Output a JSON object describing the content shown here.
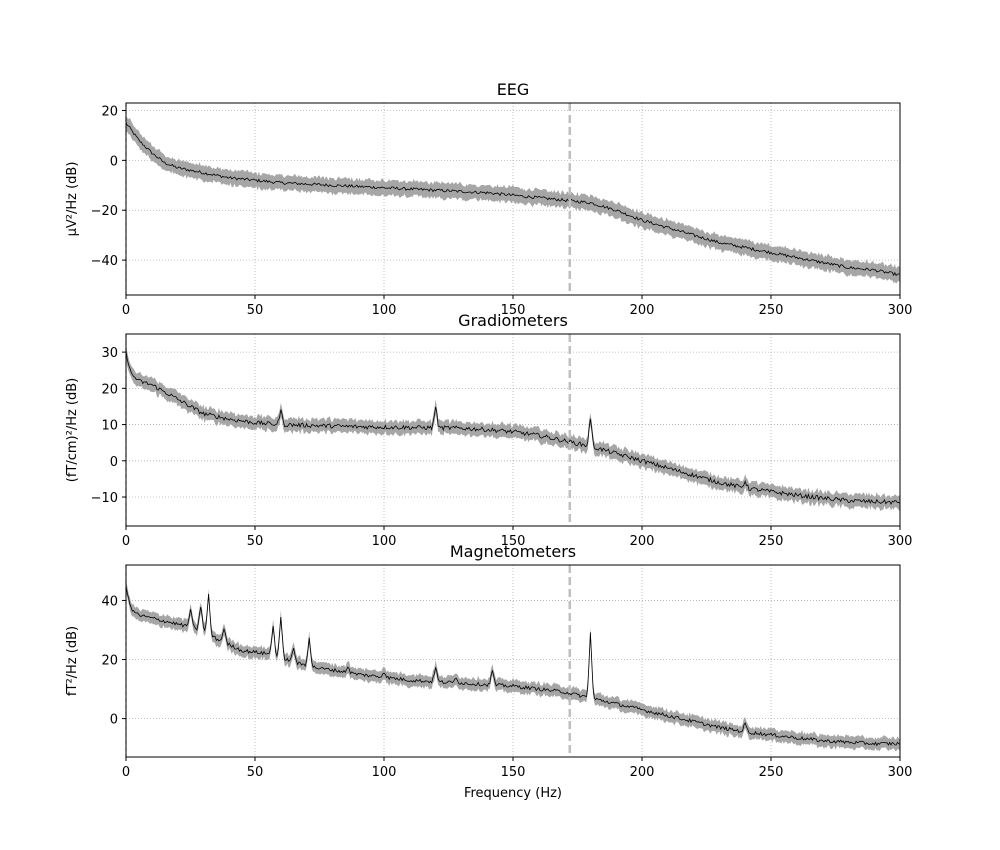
{
  "figure": {
    "xlabel": "Frequency (Hz)",
    "colors": {
      "mean_line": "#000000",
      "band": "#a6a6a6",
      "cutoff_line": "#bfbfbf",
      "grid": "#b0b0b0"
    }
  },
  "chart_data": [
    {
      "type": "line",
      "title": "EEG",
      "ylabel": "µV²/Hz (dB)",
      "xlabel": "",
      "xlim": [
        0,
        300
      ],
      "ylim": [
        -54,
        23
      ],
      "xticks": [
        0,
        50,
        100,
        150,
        200,
        250,
        300
      ],
      "yticks": [
        20,
        0,
        -20,
        -40
      ],
      "grid": true,
      "vline_x": 172,
      "band_halfwidth": 3,
      "series": [
        {
          "x": [
            0,
            5,
            10,
            15,
            20,
            30,
            40,
            50,
            60,
            70,
            80,
            90,
            100,
            110,
            120,
            130,
            140,
            150,
            160,
            170,
            175,
            180,
            190,
            200,
            210,
            220,
            230,
            240,
            250,
            260,
            270,
            280,
            290,
            300
          ],
          "values": [
            15,
            8,
            3,
            -1,
            -3,
            -5,
            -7,
            -8,
            -9,
            -9.5,
            -10,
            -10.5,
            -11,
            -11.5,
            -12,
            -12.5,
            -13,
            -14,
            -15,
            -16,
            -16.5,
            -17,
            -20,
            -24,
            -27,
            -30,
            -33,
            -35,
            -37,
            -39,
            -41,
            -43,
            -44,
            -46
          ]
        }
      ]
    },
    {
      "type": "line",
      "title": "Gradiometers",
      "ylabel": "(fT/cm)²/Hz (dB)",
      "xlabel": "",
      "xlim": [
        0,
        300
      ],
      "ylim": [
        -18,
        35
      ],
      "xticks": [
        0,
        50,
        100,
        150,
        200,
        250,
        300
      ],
      "yticks": [
        30,
        20,
        10,
        0,
        -10
      ],
      "grid": true,
      "vline_x": 172,
      "band_halfwidth": 1.8,
      "series": [
        {
          "x": [
            0,
            2,
            5,
            10,
            15,
            20,
            25,
            30,
            40,
            50,
            60,
            70,
            80,
            90,
            100,
            110,
            120,
            130,
            140,
            150,
            160,
            170,
            180,
            190,
            200,
            210,
            220,
            230,
            240,
            250,
            260,
            270,
            280,
            290,
            300
          ],
          "values": [
            30,
            24,
            22,
            21,
            19,
            17,
            15,
            13,
            11.5,
            10.5,
            10,
            9.8,
            9.6,
            9.4,
            9.3,
            9.2,
            9.1,
            9,
            8.6,
            8,
            7,
            5.5,
            4,
            2,
            0,
            -2,
            -4,
            -6,
            -7.5,
            -8.5,
            -9.5,
            -10.3,
            -11,
            -11.3,
            -11.5
          ],
          "peaks": [
            [
              60,
              4
            ],
            [
              120,
              6
            ],
            [
              180,
              8
            ],
            [
              240,
              2
            ]
          ]
        }
      ]
    },
    {
      "type": "line",
      "title": "Magnetometers",
      "ylabel": "fT²/Hz (dB)",
      "xlabel": "Frequency (Hz)",
      "xlim": [
        0,
        300
      ],
      "ylim": [
        -13,
        52
      ],
      "xticks": [
        0,
        50,
        100,
        150,
        200,
        250,
        300
      ],
      "yticks": [
        40,
        20,
        0
      ],
      "grid": true,
      "vline_x": 172,
      "band_halfwidth": 2,
      "series": [
        {
          "x": [
            0,
            2,
            5,
            10,
            15,
            20,
            25,
            30,
            35,
            40,
            45,
            50,
            55,
            60,
            65,
            70,
            75,
            80,
            90,
            100,
            110,
            120,
            130,
            140,
            150,
            160,
            170,
            180,
            190,
            200,
            210,
            220,
            230,
            240,
            250,
            260,
            270,
            280,
            290,
            300
          ],
          "values": [
            45,
            37,
            35,
            34,
            33,
            32,
            31,
            30,
            27,
            25,
            23,
            22.5,
            22,
            21,
            19,
            18,
            17,
            16.5,
            15,
            14,
            13,
            12.5,
            12,
            11.5,
            11,
            10,
            9,
            7,
            5,
            3,
            1,
            -1,
            -3,
            -4.5,
            -5.5,
            -6.5,
            -7.5,
            -8,
            -8.5,
            -8.5
          ],
          "peaks": [
            [
              25,
              6
            ],
            [
              29,
              8
            ],
            [
              32,
              13
            ],
            [
              38,
              5
            ],
            [
              57,
              10
            ],
            [
              60,
              13
            ],
            [
              65,
              5
            ],
            [
              71,
              10
            ],
            [
              86,
              2
            ],
            [
              100,
              2
            ],
            [
              120,
              5
            ],
            [
              128,
              2
            ],
            [
              142,
              5
            ],
            [
              180,
              22
            ],
            [
              240,
              3
            ]
          ]
        }
      ]
    }
  ]
}
